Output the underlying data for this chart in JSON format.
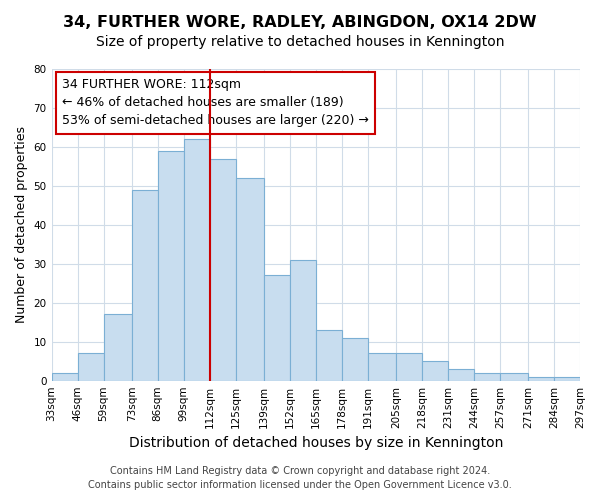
{
  "title": "34, FURTHER WORE, RADLEY, ABINGDON, OX14 2DW",
  "subtitle": "Size of property relative to detached houses in Kennington",
  "xlabel": "Distribution of detached houses by size in Kennington",
  "ylabel": "Number of detached properties",
  "bar_color": "#c8ddef",
  "bar_edge_color": "#7bafd4",
  "bins": [
    33,
    46,
    59,
    73,
    86,
    99,
    112,
    125,
    139,
    152,
    165,
    178,
    191,
    205,
    218,
    231,
    244,
    257,
    271,
    284,
    297
  ],
  "bin_labels": [
    "33sqm",
    "46sqm",
    "59sqm",
    "73sqm",
    "86sqm",
    "99sqm",
    "112sqm",
    "125sqm",
    "139sqm",
    "152sqm",
    "165sqm",
    "178sqm",
    "191sqm",
    "205sqm",
    "218sqm",
    "231sqm",
    "244sqm",
    "257sqm",
    "271sqm",
    "284sqm",
    "297sqm"
  ],
  "counts": [
    2,
    7,
    17,
    49,
    59,
    62,
    57,
    52,
    27,
    31,
    13,
    11,
    7,
    7,
    5,
    3,
    2,
    2,
    1,
    1
  ],
  "vline_x": 112,
  "vline_color": "#cc0000",
  "annotation_line1": "34 FURTHER WORE: 112sqm",
  "annotation_line2": "← 46% of detached houses are smaller (189)",
  "annotation_line3": "53% of semi-detached houses are larger (220) →",
  "annotation_box_color": "#ffffff",
  "annotation_box_edge_color": "#cc0000",
  "ylim": [
    0,
    80
  ],
  "footer1": "Contains HM Land Registry data © Crown copyright and database right 2024.",
  "footer2": "Contains public sector information licensed under the Open Government Licence v3.0.",
  "title_fontsize": 11.5,
  "subtitle_fontsize": 10,
  "xlabel_fontsize": 10,
  "ylabel_fontsize": 9,
  "tick_fontsize": 7.5,
  "annotation_fontsize": 9,
  "footer_fontsize": 7,
  "background_color": "#ffffff",
  "grid_color": "#d0dce8"
}
